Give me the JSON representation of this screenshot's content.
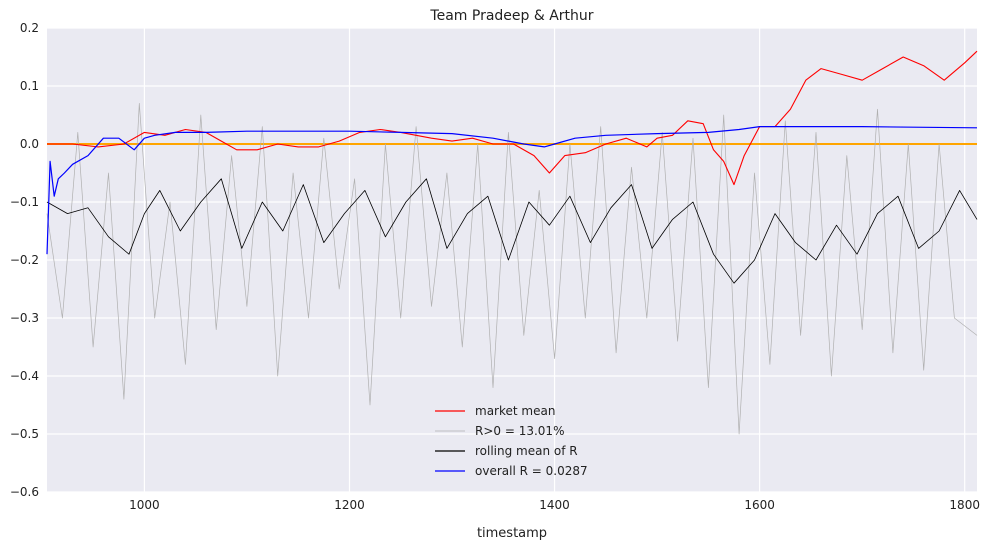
{
  "chart_data": {
    "type": "line",
    "title": "Team Pradeep & Arthur",
    "xlabel": "timestamp",
    "ylabel": "",
    "xlim": [
      905,
      1812
    ],
    "ylim": [
      -0.6,
      0.2
    ],
    "x_ticks": [
      1000,
      1200,
      1400,
      1600,
      1800
    ],
    "y_ticks": [
      -0.6,
      -0.5,
      -0.4,
      -0.3,
      -0.2,
      -0.1,
      0.0,
      0.1,
      0.2
    ],
    "x_tick_labels": [
      "1000",
      "1200",
      "1400",
      "1600",
      "1800"
    ],
    "y_tick_labels": [
      "−0.6",
      "−0.5",
      "−0.4",
      "−0.3",
      "−0.2",
      "−0.1",
      "0.0",
      "0.1",
      "0.2"
    ],
    "grid": true,
    "legend_position": "bottom-center",
    "background_color": "#eaeaf2",
    "grid_color": "#ffffff",
    "hline": {
      "y": 0.0,
      "color": "#ffa500"
    },
    "series": [
      {
        "name": "market mean",
        "color": "#ff0000",
        "x": [
          905,
          930,
          955,
          980,
          1000,
          1020,
          1040,
          1060,
          1080,
          1090,
          1110,
          1130,
          1150,
          1170,
          1190,
          1210,
          1230,
          1250,
          1280,
          1300,
          1320,
          1340,
          1360,
          1380,
          1395,
          1410,
          1430,
          1450,
          1470,
          1490,
          1500,
          1515,
          1530,
          1545,
          1555,
          1565,
          1575,
          1585,
          1600,
          1615,
          1630,
          1645,
          1660,
          1680,
          1700,
          1720,
          1740,
          1760,
          1780,
          1800,
          1812
        ],
        "values": [
          0.0,
          0.0,
          -0.005,
          0.0,
          0.02,
          0.015,
          0.025,
          0.02,
          0.0,
          -0.01,
          -0.01,
          0.0,
          -0.005,
          -0.005,
          0.005,
          0.02,
          0.025,
          0.02,
          0.01,
          0.005,
          0.01,
          0.0,
          0.0,
          -0.02,
          -0.05,
          -0.02,
          -0.015,
          0.0,
          0.01,
          -0.005,
          0.01,
          0.015,
          0.04,
          0.035,
          -0.01,
          -0.03,
          -0.07,
          -0.02,
          0.03,
          0.03,
          0.06,
          0.11,
          0.13,
          0.12,
          0.11,
          0.13,
          0.15,
          0.135,
          0.11,
          0.14,
          0.16
        ]
      },
      {
        "name": "R>0 = 13.01%",
        "color": "#b0b0b0",
        "x": [
          905,
          920,
          935,
          950,
          965,
          980,
          995,
          1010,
          1025,
          1040,
          1055,
          1070,
          1085,
          1100,
          1115,
          1130,
          1145,
          1160,
          1175,
          1190,
          1205,
          1220,
          1235,
          1250,
          1265,
          1280,
          1295,
          1310,
          1325,
          1340,
          1355,
          1370,
          1385,
          1400,
          1415,
          1430,
          1445,
          1460,
          1475,
          1490,
          1505,
          1520,
          1535,
          1550,
          1565,
          1580,
          1595,
          1610,
          1625,
          1640,
          1655,
          1670,
          1685,
          1700,
          1715,
          1730,
          1745,
          1760,
          1775,
          1790,
          1812
        ],
        "values": [
          -0.12,
          -0.3,
          0.02,
          -0.35,
          -0.05,
          -0.44,
          0.07,
          -0.3,
          -0.1,
          -0.38,
          0.05,
          -0.32,
          -0.02,
          -0.28,
          0.03,
          -0.4,
          -0.05,
          -0.3,
          0.01,
          -0.25,
          -0.06,
          -0.45,
          0.0,
          -0.3,
          0.03,
          -0.28,
          -0.05,
          -0.35,
          0.0,
          -0.42,
          0.02,
          -0.33,
          -0.08,
          -0.37,
          0.0,
          -0.3,
          0.03,
          -0.36,
          -0.04,
          -0.3,
          0.02,
          -0.34,
          0.01,
          -0.42,
          0.05,
          -0.5,
          -0.05,
          -0.38,
          0.04,
          -0.33,
          0.02,
          -0.4,
          -0.02,
          -0.32,
          0.06,
          -0.36,
          0.0,
          -0.39,
          0.0,
          -0.3,
          -0.33
        ]
      },
      {
        "name": "rolling mean of R",
        "color": "#000000",
        "x": [
          905,
          925,
          945,
          965,
          985,
          1000,
          1015,
          1035,
          1055,
          1075,
          1095,
          1115,
          1135,
          1155,
          1175,
          1195,
          1215,
          1235,
          1255,
          1275,
          1295,
          1315,
          1335,
          1355,
          1375,
          1395,
          1415,
          1435,
          1455,
          1475,
          1495,
          1515,
          1535,
          1555,
          1575,
          1595,
          1615,
          1635,
          1655,
          1675,
          1695,
          1715,
          1735,
          1755,
          1775,
          1795,
          1812
        ],
        "values": [
          -0.1,
          -0.12,
          -0.11,
          -0.16,
          -0.19,
          -0.12,
          -0.08,
          -0.15,
          -0.1,
          -0.06,
          -0.18,
          -0.1,
          -0.15,
          -0.07,
          -0.17,
          -0.12,
          -0.08,
          -0.16,
          -0.1,
          -0.06,
          -0.18,
          -0.12,
          -0.09,
          -0.2,
          -0.1,
          -0.14,
          -0.09,
          -0.17,
          -0.11,
          -0.07,
          -0.18,
          -0.13,
          -0.1,
          -0.19,
          -0.24,
          -0.2,
          -0.12,
          -0.17,
          -0.2,
          -0.14,
          -0.19,
          -0.12,
          -0.09,
          -0.18,
          -0.15,
          -0.08,
          -0.13
        ]
      },
      {
        "name": "overall R = 0.0287",
        "color": "#0000ff",
        "x": [
          905,
          908,
          912,
          916,
          922,
          930,
          945,
          960,
          975,
          990,
          1000,
          1010,
          1030,
          1060,
          1100,
          1150,
          1200,
          1250,
          1300,
          1340,
          1370,
          1390,
          1400,
          1420,
          1450,
          1500,
          1550,
          1580,
          1600,
          1650,
          1700,
          1750,
          1812
        ],
        "values": [
          -0.19,
          -0.03,
          -0.09,
          -0.06,
          -0.05,
          -0.035,
          -0.02,
          0.01,
          0.01,
          -0.01,
          0.01,
          0.015,
          0.02,
          0.02,
          0.022,
          0.022,
          0.022,
          0.02,
          0.018,
          0.01,
          0.0,
          -0.005,
          0.0,
          0.01,
          0.015,
          0.018,
          0.02,
          0.025,
          0.03,
          0.03,
          0.03,
          0.029,
          0.028
        ]
      }
    ]
  }
}
